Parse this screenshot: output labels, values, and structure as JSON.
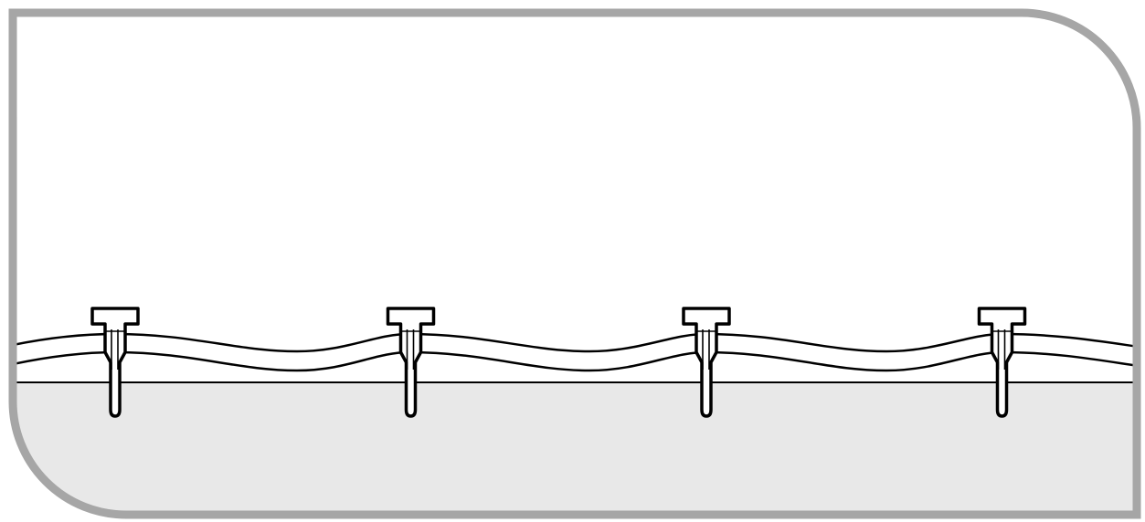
{
  "diagram": {
    "subject": "irrigation-tubing-with-stakes",
    "stake_count": 4,
    "colors": {
      "frame": "#a6a6a6",
      "background": "#ffffff",
      "ground": "#e8e8e8",
      "line": "#000000"
    },
    "icons": {
      "stake": "tubing-stake-icon"
    }
  }
}
